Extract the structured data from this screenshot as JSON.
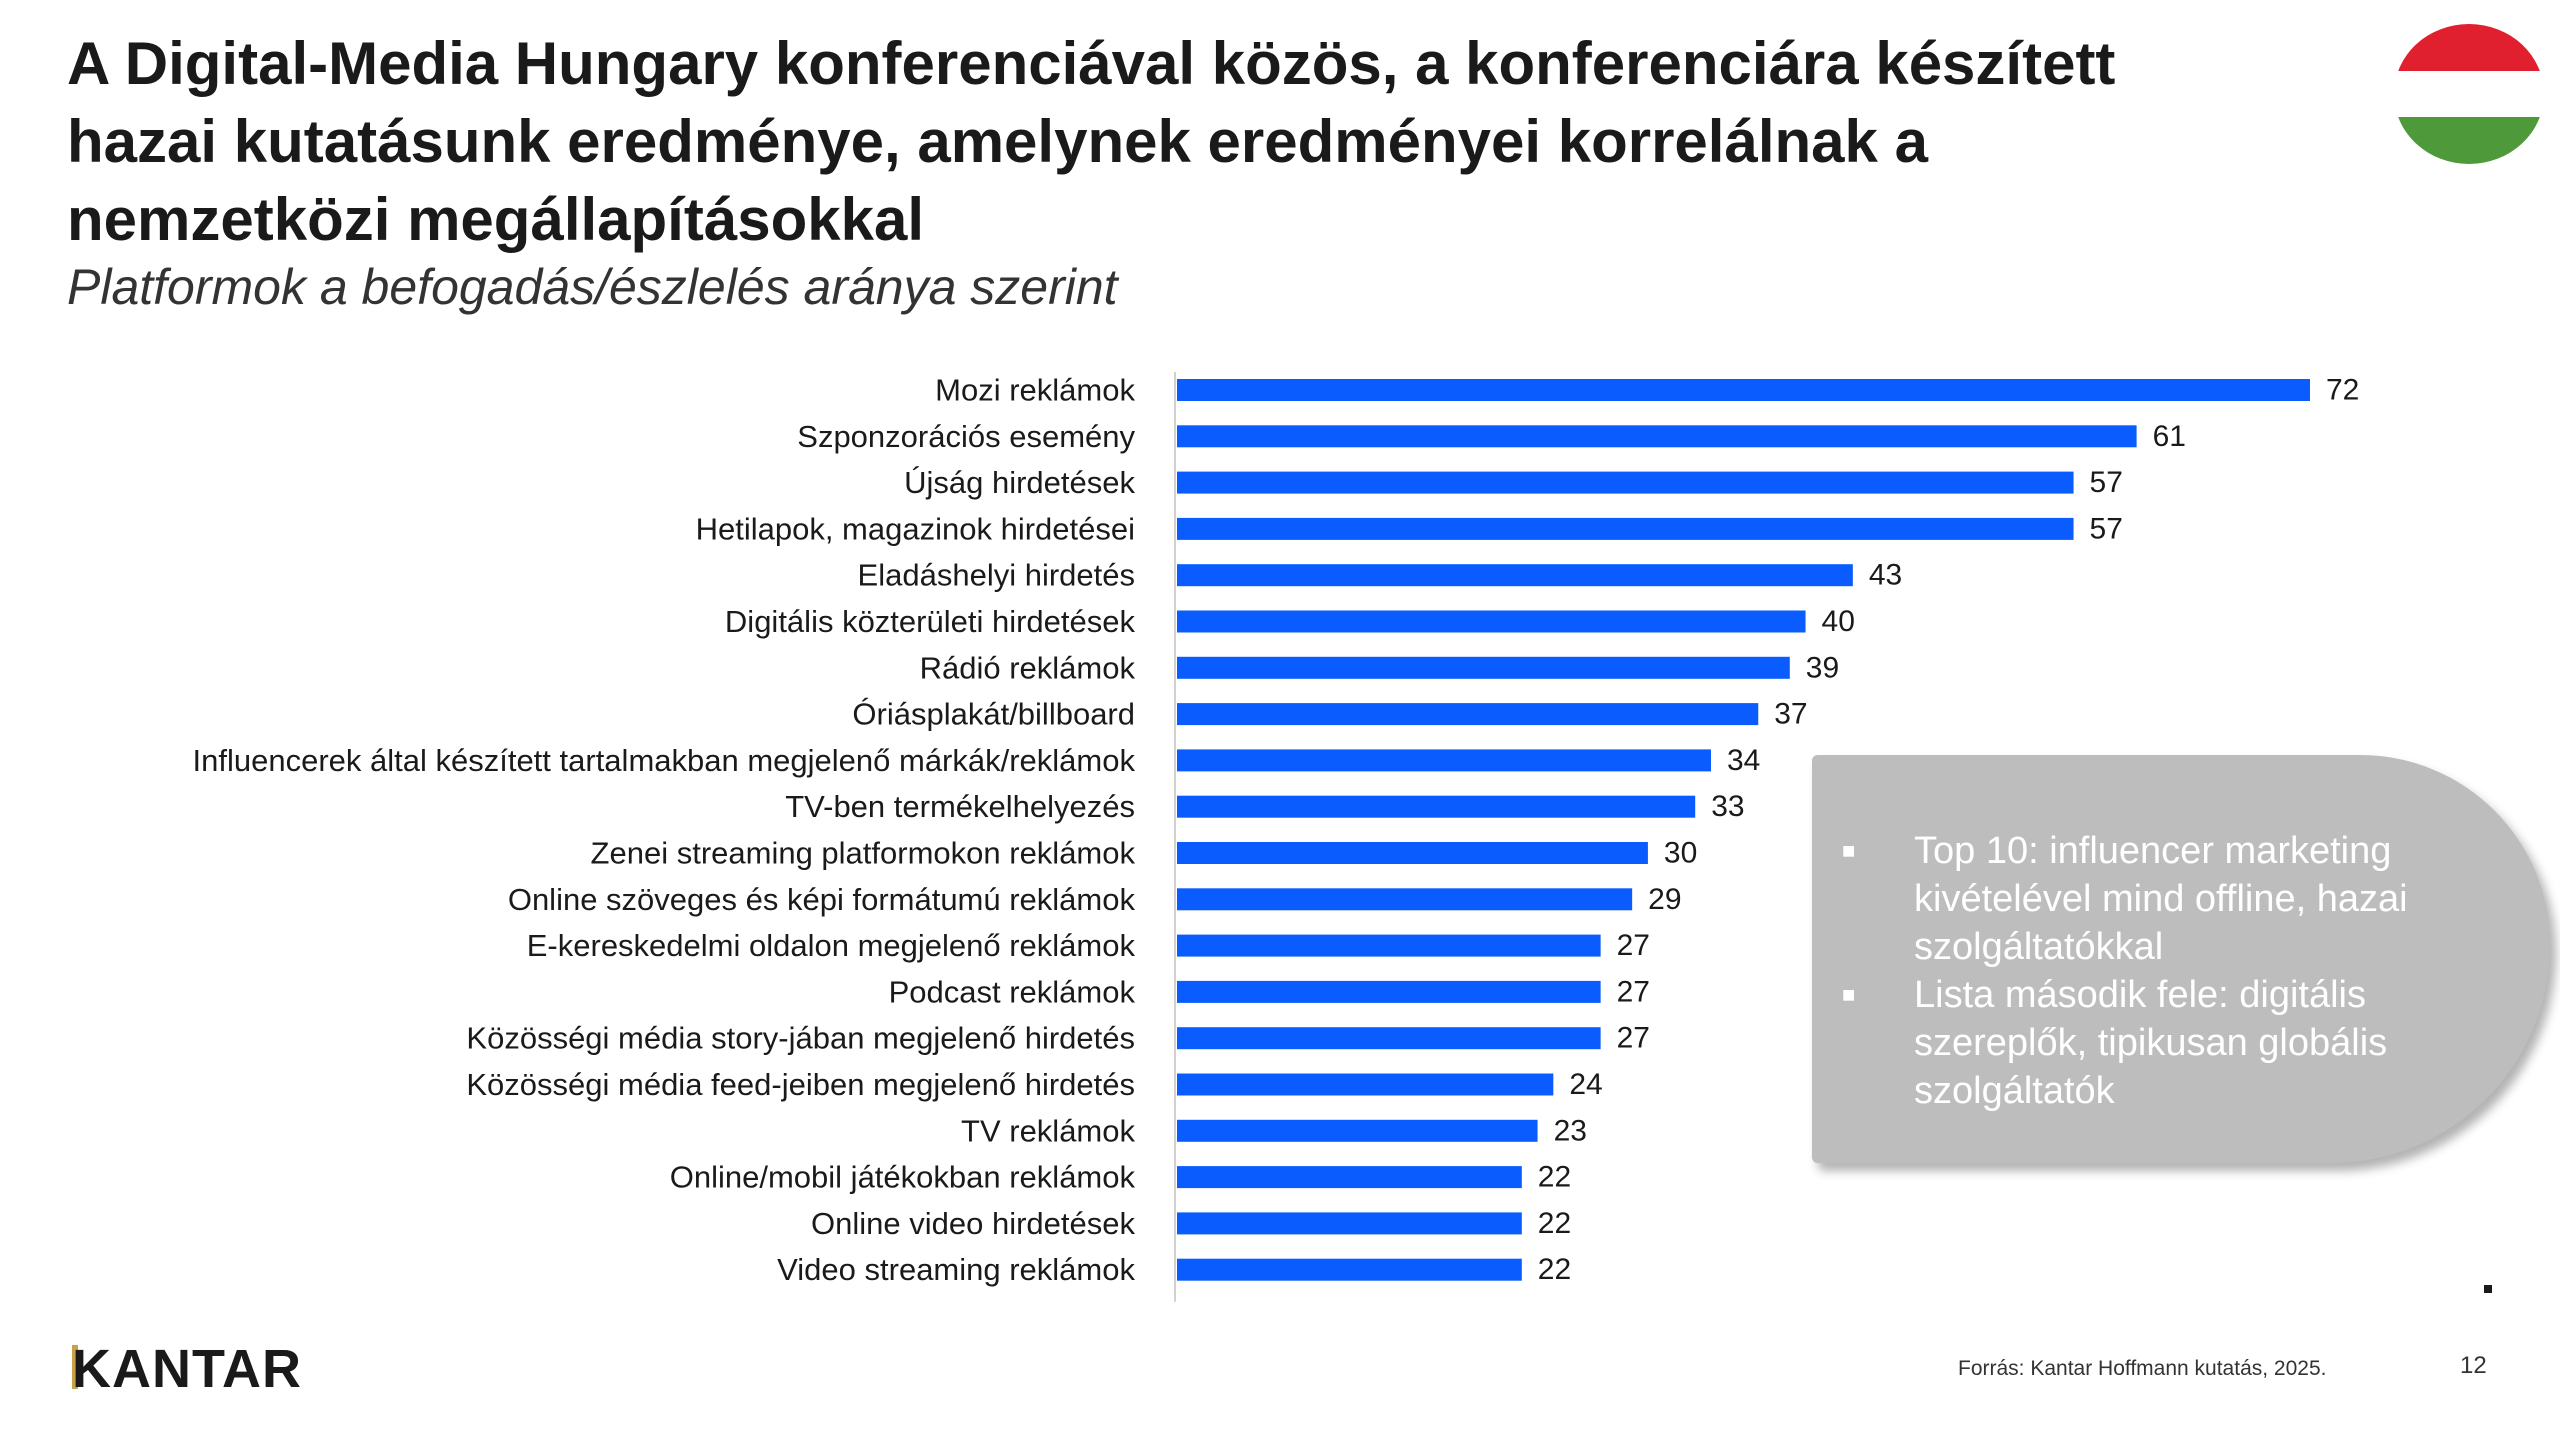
{
  "title_lines": [
    "A Digital-Media Hungary konferenciával közös, a konferenciára készített",
    "hazai kutatásunk eredménye, amelynek eredményei korrelálnak a",
    "nemzetközi megállapításokkal"
  ],
  "subtitle": "Platformok a befogadás/észlelés aránya szerint",
  "colors": {
    "bar": "#0a5cff",
    "flag_red": "#e0202f",
    "flag_white": "#ffffff",
    "flag_green": "#4e9a3a",
    "callout": "#bdbdbd"
  },
  "chart_data": {
    "type": "bar",
    "orientation": "horizontal",
    "categories": [
      "Mozi reklámok",
      "Szponzorációs esemény",
      "Újság hirdetések",
      "Hetilapok, magazinok hirdetései",
      "Eladáshelyi hirdetés",
      "Digitális közterületi hirdetések",
      "Rádió reklámok",
      "Óriásplakát/billboard",
      "Influencerek által készített tartalmakban megjelenő márkák/reklámok",
      "TV-ben termékelhelyezés",
      "Zenei streaming platformokon reklámok",
      "Online szöveges és képi formátumú reklámok",
      "E-kereskedelmi oldalon megjelenő reklámok",
      "Podcast reklámok",
      "Közösségi média story-jában megjelenő hirdetés",
      "Közösségi média feed-jeiben megjelenő hirdetés",
      "TV reklámok",
      "Online/mobil játékokban reklámok",
      "Online video hirdetések",
      "Video streaming reklámok"
    ],
    "values": [
      72,
      61,
      57,
      57,
      43,
      40,
      39,
      37,
      34,
      33,
      30,
      29,
      27,
      27,
      27,
      24,
      23,
      22,
      22,
      22
    ],
    "xlim": [
      0,
      72
    ],
    "title": "",
    "xlabel": "",
    "ylabel": ""
  },
  "callout": {
    "bullets": [
      "Top 10: influencer marketing kivételével mind offline, hazai szolgáltatókkal",
      "Lista második fele: digitális szereplők, tipikusan globális szolgáltatók"
    ]
  },
  "logo": "KANTAR",
  "source": "Forrás: Kantar Hoffmann kutatás, 2025.",
  "page_number": "12"
}
